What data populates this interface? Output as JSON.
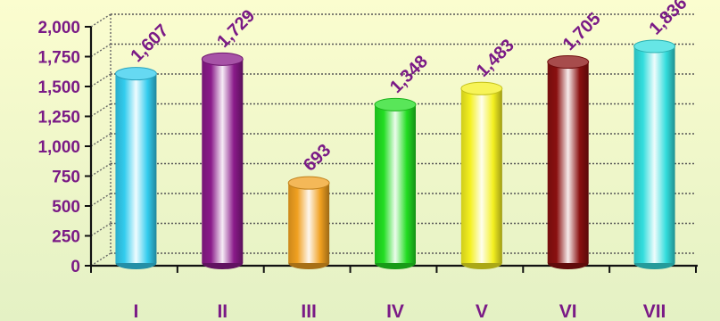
{
  "chart_data": {
    "type": "bar",
    "categories": [
      "I",
      "II",
      "III",
      "IV",
      "V",
      "VI",
      "VII"
    ],
    "values": [
      1607,
      1729,
      693,
      1348,
      1483,
      1705,
      1836
    ],
    "value_labels": [
      "1,607",
      "1,729",
      "693",
      "1,348",
      "1,483",
      "1,705",
      "1,836"
    ],
    "y_ticks": [
      "0",
      "250",
      "500",
      "750",
      "1,000",
      "1,250",
      "1,500",
      "1,750",
      "2,000"
    ],
    "ylim": [
      0,
      2000
    ],
    "title": "",
    "xlabel": "",
    "ylabel": "",
    "grid": true,
    "bar_colors": [
      "#33ccee",
      "#8a1a8a",
      "#f0a020",
      "#22dd22",
      "#f4f020",
      "#8a1010",
      "#33dddd"
    ],
    "text_color": "#7a1a86",
    "background": "#f8fbcc"
  }
}
